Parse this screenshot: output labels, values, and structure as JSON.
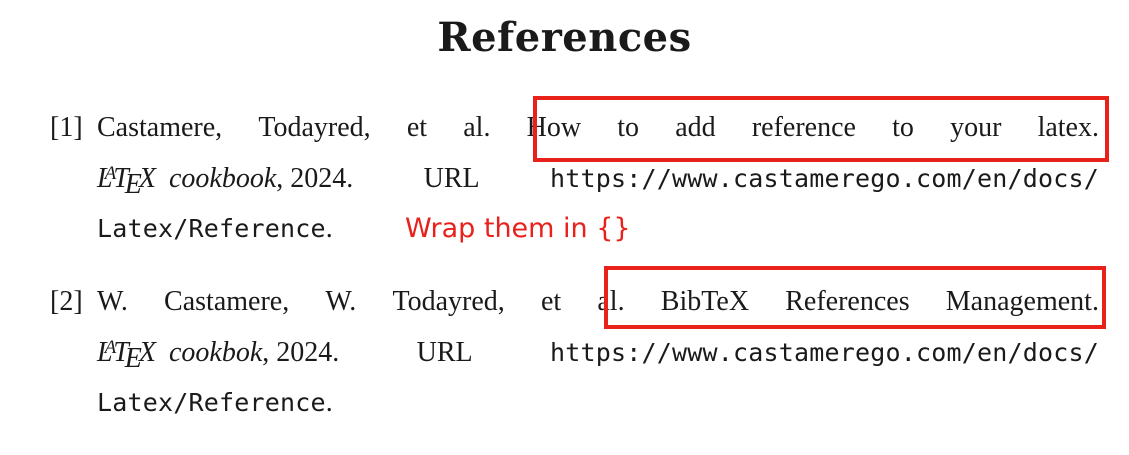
{
  "page_title": "References",
  "references": [
    {
      "number": "[1]",
      "line1_words": [
        "Castamere,",
        "Todayred,",
        "et",
        "al.",
        "How",
        "to",
        "add",
        "reference",
        "to",
        "your",
        "latex."
      ],
      "journal": "cookbook",
      "year_text": ", 2024.",
      "url_label": "URL",
      "url_part1": "https://www.castamerego.com/en/docs/",
      "url_part2": "Latex/Reference",
      "trailing": "."
    },
    {
      "number": "[2]",
      "line1_words": [
        "W.",
        "Castamere,",
        "W.",
        "Todayred,",
        "et",
        "al.",
        "BibTeX",
        "References",
        "Management."
      ],
      "journal": "cookbok",
      "year_text": ", 2024.",
      "url_label": "URL",
      "url_part1": "https://www.castamerego.com/en/docs/",
      "url_part2": "Latex/Reference",
      "trailing": "."
    }
  ],
  "latex_logo": {
    "l": "L",
    "a": "A",
    "t": "T",
    "e": "E",
    "x": "X"
  },
  "annotation_text": "Wrap them in {}",
  "colors": {
    "annotation": "#e8211b",
    "text": "#1a1a1a",
    "background": "#ffffff"
  }
}
